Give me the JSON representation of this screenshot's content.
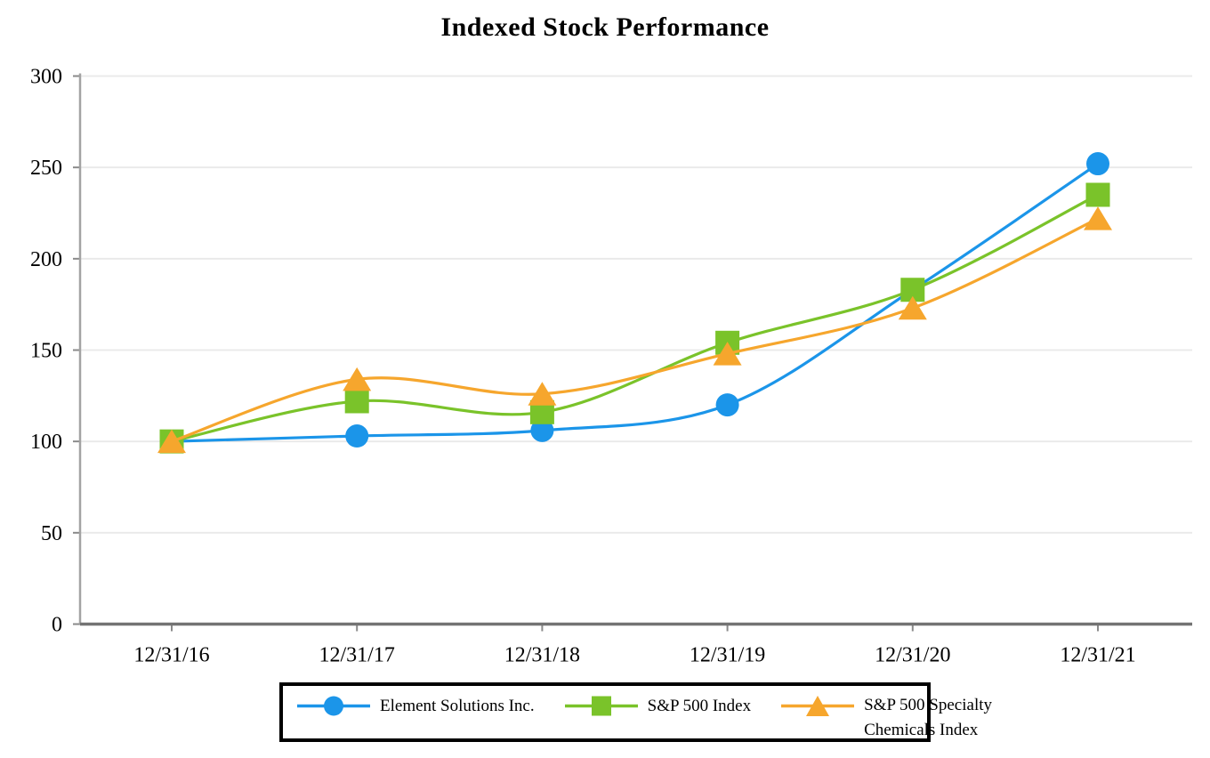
{
  "title": "Indexed Stock Performance",
  "chart_data": {
    "type": "line",
    "title": "Indexed Stock Performance",
    "xlabel": "",
    "ylabel": "",
    "categories": [
      "12/31/16",
      "12/31/17",
      "12/31/18",
      "12/31/19",
      "12/31/20",
      "12/31/21"
    ],
    "y_ticks": [
      0,
      50,
      100,
      150,
      200,
      250,
      300
    ],
    "ylim": [
      0,
      300
    ],
    "grid": true,
    "line_style": "smooth",
    "legend_position": "bottom",
    "series": [
      {
        "name": "Element Solutions Inc.",
        "marker": "circle",
        "color": "#1b95e9",
        "values": [
          100,
          103,
          106,
          120,
          183,
          252
        ]
      },
      {
        "name": "S&P 500 Index",
        "marker": "square",
        "color": "#7ac32a",
        "values": [
          100,
          122,
          116,
          154,
          183,
          235
        ]
      },
      {
        "name": "S&P 500 Specialty Chemicals Index",
        "marker": "triangle",
        "color": "#f6a62d",
        "values": [
          100,
          134,
          126,
          148,
          173,
          222
        ]
      }
    ]
  },
  "colors": {
    "gridline": "#e9e9e9",
    "y_axis": "#a3a3a3",
    "x_axis": "#737373",
    "tick": "#8a8a8a",
    "legend_border": "#000000"
  }
}
